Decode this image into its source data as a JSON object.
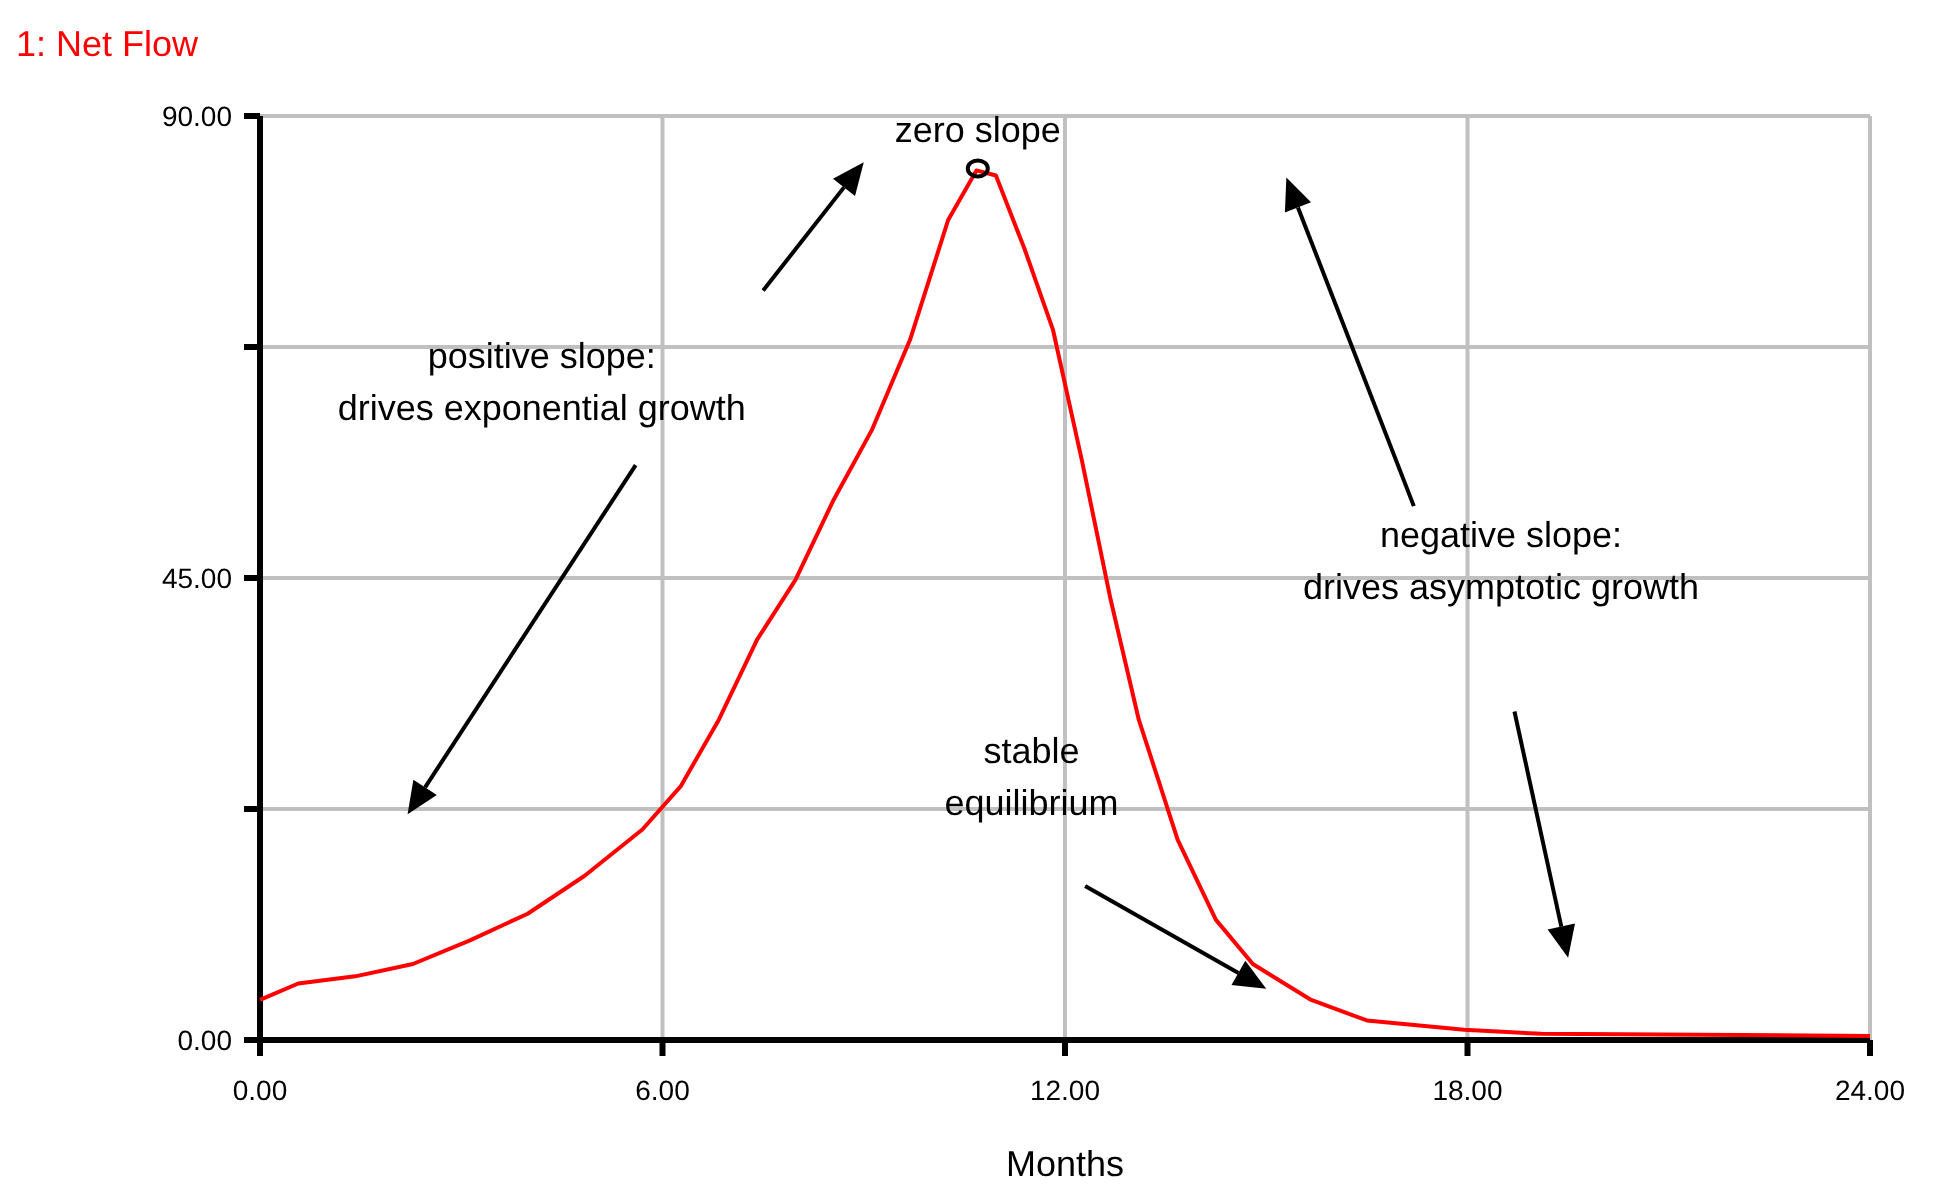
{
  "chart_data": {
    "type": "line",
    "xlabel": "Months",
    "legend": "top left",
    "grid": true,
    "xlim": [
      0,
      24
    ],
    "xticks": [
      {
        "value": 0,
        "label": "0.00"
      },
      {
        "value": 6,
        "label": "6.00"
      },
      {
        "value": 12,
        "label": "12.00"
      },
      {
        "value": 18,
        "label": "18.00"
      },
      {
        "value": 24,
        "label": "24.00"
      }
    ],
    "ylim": [
      0,
      90
    ],
    "yticks": [
      {
        "value": 0,
        "label": "0.00"
      },
      {
        "value": 22.5,
        "label": null
      },
      {
        "value": 45,
        "label": "45.00"
      },
      {
        "value": 67.5,
        "label": null
      },
      {
        "value": 90,
        "label": "90.00"
      }
    ],
    "x": [
      0,
      0.57,
      1.42,
      2.28,
      3.13,
      3.99,
      4.84,
      5.7,
      6.27,
      6.84,
      7.41,
      7.98,
      8.55,
      9.12,
      9.69,
      10.26,
      10.68,
      10.97,
      11.4,
      11.82,
      12.25,
      12.68,
      13.1,
      13.68,
      14.25,
      14.8,
      15.67,
      16.5,
      17.95,
      19.1,
      24
    ],
    "series": [
      {
        "name": "1: Net Flow",
        "color": "#ff0000",
        "values": [
          3.9,
          5.5,
          6.2,
          7.4,
          9.7,
          12.3,
          16,
          20.5,
          24.7,
          31.2,
          39,
          44.8,
          52.6,
          59.4,
          68.2,
          79.9,
          84.7,
          84.2,
          77,
          69.2,
          56.5,
          42.9,
          31.2,
          19.5,
          11.7,
          7.4,
          3.9,
          1.9,
          1,
          0.6,
          0.4
        ]
      }
    ],
    "annotations": [
      {
        "text": "zero slope",
        "x": 10.7,
        "y": 84.7
      },
      "positive slope:\ndrives exponential growth",
      "negative slope:\ndrives asymptotic growth",
      "stable\nequilibrium"
    ]
  }
}
